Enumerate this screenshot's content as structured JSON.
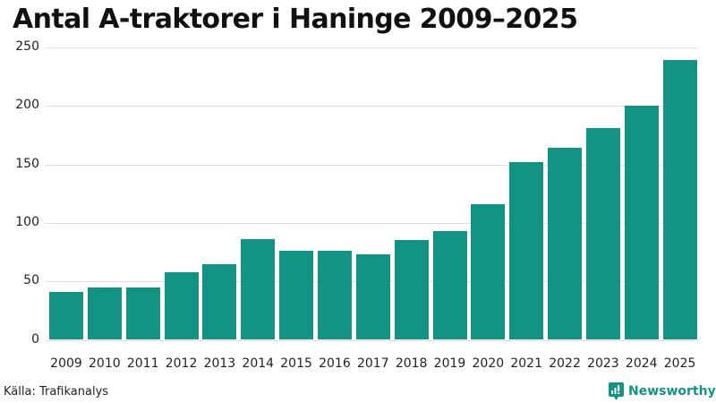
{
  "title": "Antal A-traktorer i Haninge 2009–2025",
  "source": "Källa: Trafikanalys",
  "brand": {
    "name": "Newsworthy",
    "icon": "bar-chart-speech-bubble-icon",
    "color": "#139383"
  },
  "colors": {
    "bar": "#139383",
    "grid": "#dcdce2"
  },
  "chart_data": {
    "type": "bar",
    "title": "Antal A-traktorer i Haninge 2009–2025",
    "xlabel": "",
    "ylabel": "",
    "categories": [
      "2009",
      "2010",
      "2011",
      "2012",
      "2013",
      "2014",
      "2015",
      "2016",
      "2017",
      "2018",
      "2019",
      "2020",
      "2021",
      "2022",
      "2023",
      "2024",
      "2025"
    ],
    "values": [
      41,
      45,
      45,
      58,
      65,
      86,
      76,
      76,
      73,
      85,
      93,
      116,
      152,
      164,
      181,
      200,
      239
    ],
    "ylim": [
      0,
      250
    ],
    "yticks": [
      0,
      50,
      100,
      150,
      200,
      250
    ],
    "grid": true,
    "legend": null,
    "source": "Källa: Trafikanalys"
  }
}
